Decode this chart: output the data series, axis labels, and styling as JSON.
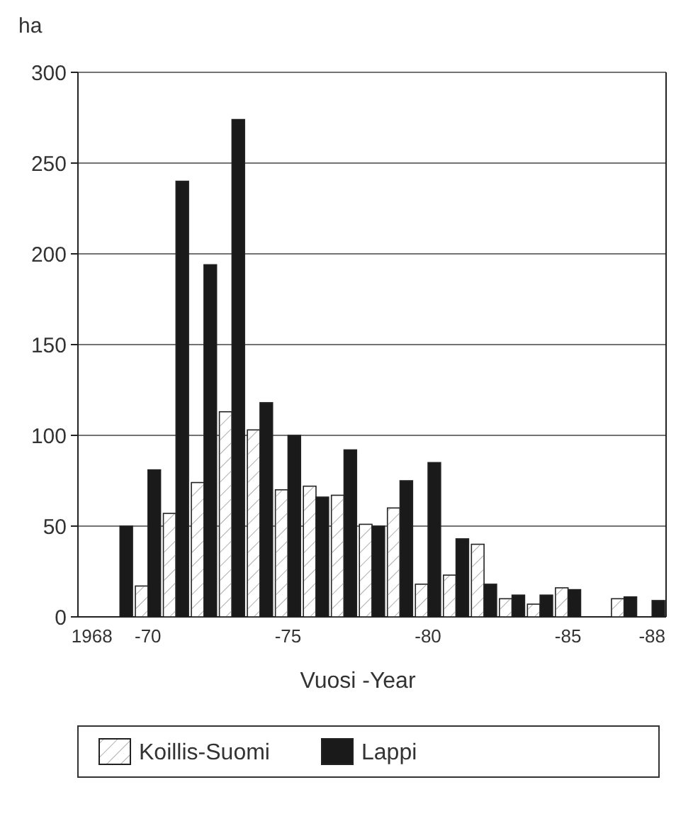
{
  "chart_data": {
    "type": "bar",
    "ylabel": "ha",
    "xlabel": "Vuosi -Year",
    "categories": [
      "1968",
      null,
      "-70",
      null,
      null,
      null,
      null,
      "-75",
      null,
      null,
      null,
      null,
      "-80",
      null,
      null,
      null,
      null,
      "-85",
      null,
      null,
      "-88"
    ],
    "series": [
      {
        "name": "Koillis-Suomi",
        "color": "#ffffff",
        "values": [
          null,
          null,
          17,
          57,
          74,
          113,
          103,
          70,
          72,
          67,
          51,
          60,
          18,
          23,
          40,
          10,
          7,
          16,
          null,
          10,
          null
        ]
      },
      {
        "name": "Lappi",
        "color": "#1a1a1a",
        "values": [
          null,
          50,
          81,
          240,
          194,
          274,
          118,
          100,
          66,
          92,
          50,
          75,
          85,
          43,
          18,
          12,
          12,
          15,
          null,
          11,
          9
        ]
      }
    ],
    "ylim": [
      0,
      300
    ],
    "yticks": [
      0,
      50,
      100,
      150,
      200,
      250,
      300
    ],
    "grid": "y",
    "legend": "bottom"
  }
}
